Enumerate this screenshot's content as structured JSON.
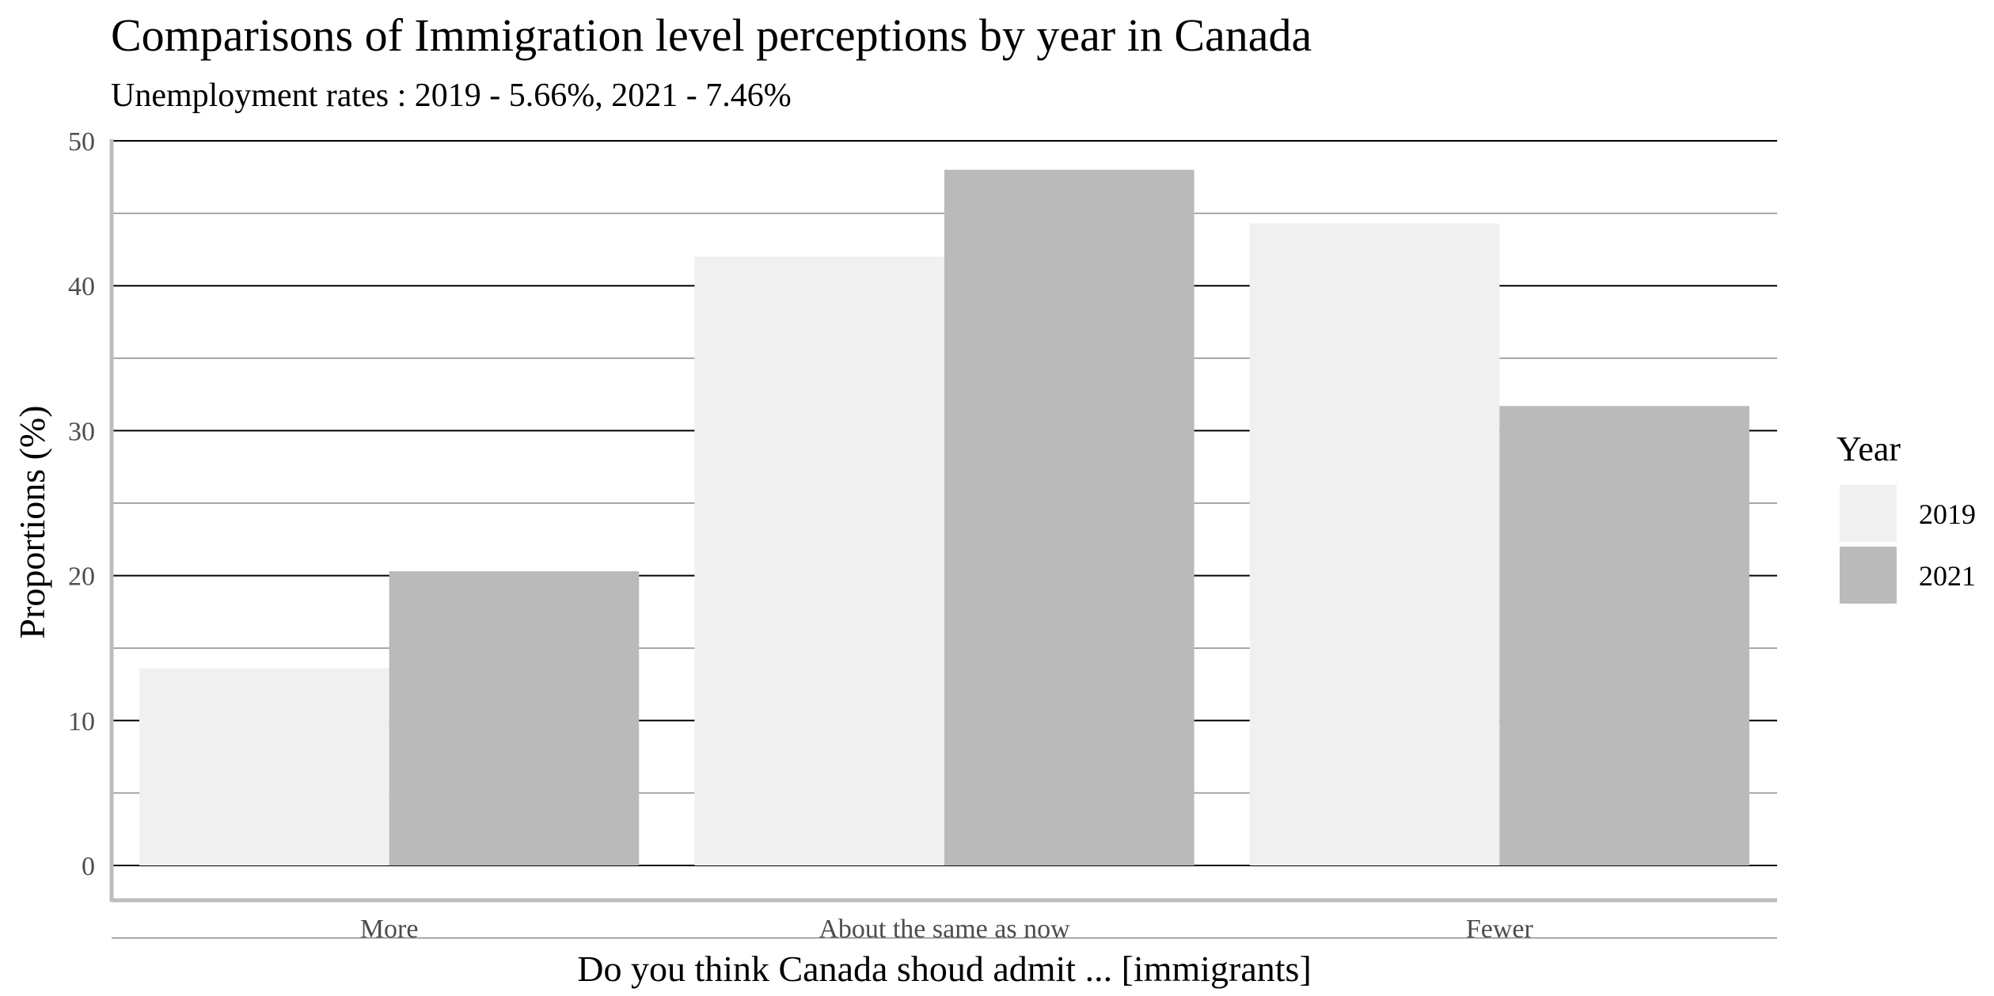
{
  "chart_data": {
    "type": "bar",
    "title": "Comparisons of Immigration level perceptions by year in Canada",
    "subtitle": "Unemployment rates : 2019 - 5.66%, 2021 - 7.46%",
    "xlabel": "Do you think Canada shoud admit ... [immigrants]",
    "ylabel": "Proportions (%)",
    "categories": [
      "More",
      "About the same as now",
      "Fewer"
    ],
    "series": [
      {
        "name": "2019",
        "values": [
          13.6,
          42.0,
          44.3
        ],
        "color": "#f0f0f0"
      },
      {
        "name": "2021",
        "values": [
          20.3,
          48.0,
          31.7
        ],
        "color": "#bababa"
      }
    ],
    "ylim": [
      0,
      50
    ],
    "y_ticks": [
      "0",
      "10",
      "20",
      "30",
      "40",
      "50"
    ],
    "grid": true,
    "legend": {
      "title": "Year",
      "position": "right"
    }
  }
}
